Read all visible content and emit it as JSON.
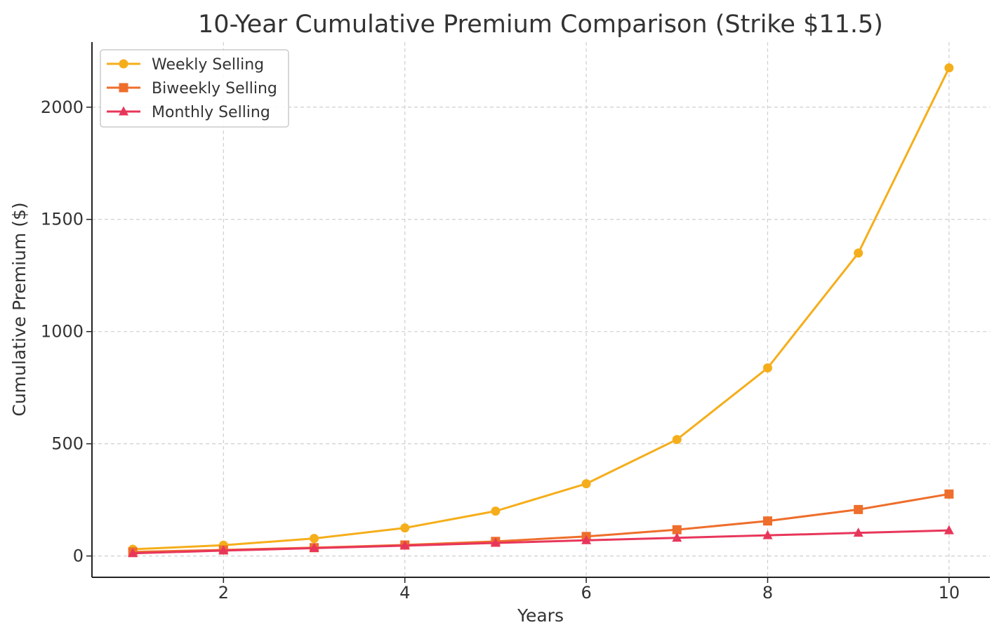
{
  "chart_data": {
    "type": "line",
    "title": "10-Year Cumulative Premium Comparison (Strike $11.5)",
    "xlabel": "Years",
    "ylabel": "Cumulative Premium ($)",
    "x": [
      1,
      2,
      3,
      4,
      5,
      6,
      7,
      8,
      9,
      10
    ],
    "xlim": [
      0.55,
      10.45
    ],
    "ylim": [
      -95,
      2290
    ],
    "xticks": [
      2,
      4,
      6,
      8,
      10
    ],
    "yticks": [
      0,
      500,
      1000,
      1500,
      2000
    ],
    "grid": true,
    "legend_position": "top-left",
    "series": [
      {
        "name": "Weekly Selling",
        "color": "#F5AE1B",
        "marker": "circle",
        "values": [
          30,
          48,
          78,
          125,
          200,
          322,
          519,
          838,
          1350,
          2175
        ]
      },
      {
        "name": "Biweekly Selling",
        "color": "#EE6E2B",
        "marker": "square",
        "values": [
          18,
          27,
          37,
          49,
          65,
          87,
          117,
          156,
          207,
          276
        ]
      },
      {
        "name": "Monthly Selling",
        "color": "#E8365A",
        "marker": "triangle",
        "values": [
          12,
          24,
          35,
          46,
          58,
          70,
          81,
          92,
          103,
          114
        ]
      }
    ]
  }
}
